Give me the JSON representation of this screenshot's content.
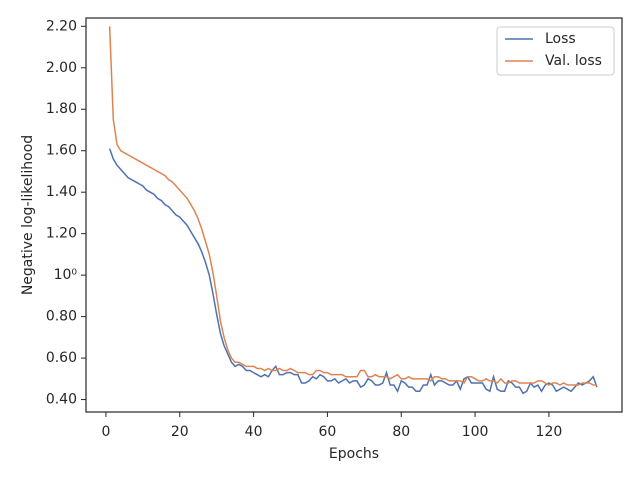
{
  "chart_data": {
    "type": "line",
    "xlabel": "Epochs",
    "ylabel": "Negative log-likelihood",
    "x": [
      1,
      2,
      3,
      4,
      5,
      6,
      7,
      8,
      9,
      10,
      11,
      12,
      13,
      14,
      15,
      16,
      17,
      18,
      19,
      20,
      21,
      22,
      23,
      24,
      25,
      26,
      27,
      28,
      29,
      30,
      31,
      32,
      33,
      34,
      35,
      36,
      37,
      38,
      39,
      40,
      41,
      42,
      43,
      44,
      45,
      46,
      47,
      48,
      49,
      50,
      51,
      52,
      53,
      54,
      55,
      56,
      57,
      58,
      59,
      60,
      61,
      62,
      63,
      64,
      65,
      66,
      67,
      68,
      69,
      70,
      71,
      72,
      73,
      74,
      75,
      76,
      77,
      78,
      79,
      80,
      81,
      82,
      83,
      84,
      85,
      86,
      87,
      88,
      89,
      90,
      91,
      92,
      93,
      94,
      95,
      96,
      97,
      98,
      99,
      100,
      101,
      102,
      103,
      104,
      105,
      106,
      107,
      108,
      109,
      110,
      111,
      112,
      113,
      114,
      115,
      116,
      117,
      118,
      119,
      120,
      121,
      122,
      123,
      124,
      125,
      126,
      127,
      128,
      129,
      130,
      131,
      132,
      133
    ],
    "series": [
      {
        "name": "Loss",
        "color": "#4c72b0",
        "values": [
          1.61,
          1.56,
          1.53,
          1.51,
          1.49,
          1.47,
          1.46,
          1.45,
          1.44,
          1.43,
          1.41,
          1.4,
          1.39,
          1.37,
          1.36,
          1.34,
          1.33,
          1.31,
          1.29,
          1.28,
          1.26,
          1.24,
          1.21,
          1.18,
          1.15,
          1.11,
          1.06,
          1.0,
          0.91,
          0.81,
          0.72,
          0.66,
          0.62,
          0.58,
          0.56,
          0.57,
          0.56,
          0.54,
          0.54,
          0.53,
          0.52,
          0.51,
          0.52,
          0.51,
          0.54,
          0.56,
          0.52,
          0.52,
          0.53,
          0.53,
          0.52,
          0.52,
          0.48,
          0.48,
          0.49,
          0.51,
          0.5,
          0.52,
          0.51,
          0.49,
          0.49,
          0.5,
          0.48,
          0.49,
          0.5,
          0.48,
          0.49,
          0.49,
          0.46,
          0.47,
          0.5,
          0.49,
          0.47,
          0.47,
          0.48,
          0.53,
          0.47,
          0.47,
          0.44,
          0.49,
          0.48,
          0.46,
          0.46,
          0.44,
          0.44,
          0.47,
          0.47,
          0.52,
          0.47,
          0.49,
          0.49,
          0.48,
          0.47,
          0.47,
          0.49,
          0.45,
          0.5,
          0.51,
          0.48,
          0.48,
          0.48,
          0.48,
          0.45,
          0.44,
          0.51,
          0.45,
          0.44,
          0.44,
          0.49,
          0.48,
          0.46,
          0.46,
          0.43,
          0.44,
          0.48,
          0.46,
          0.47,
          0.44,
          0.47,
          0.48,
          0.47,
          0.44,
          0.45,
          0.46,
          0.45,
          0.44,
          0.46,
          0.48,
          0.47,
          0.48,
          0.49,
          0.51,
          0.46
        ]
      },
      {
        "name": "Val. loss",
        "color": "#dd8452",
        "values": [
          2.2,
          1.75,
          1.63,
          1.6,
          1.59,
          1.58,
          1.57,
          1.56,
          1.55,
          1.54,
          1.53,
          1.52,
          1.51,
          1.5,
          1.49,
          1.48,
          1.46,
          1.45,
          1.43,
          1.41,
          1.39,
          1.37,
          1.34,
          1.31,
          1.27,
          1.22,
          1.16,
          1.1,
          1.01,
          0.9,
          0.78,
          0.7,
          0.64,
          0.6,
          0.58,
          0.58,
          0.57,
          0.56,
          0.56,
          0.56,
          0.55,
          0.55,
          0.54,
          0.55,
          0.54,
          0.54,
          0.55,
          0.54,
          0.54,
          0.55,
          0.54,
          0.53,
          0.53,
          0.53,
          0.52,
          0.52,
          0.54,
          0.54,
          0.53,
          0.53,
          0.52,
          0.52,
          0.52,
          0.52,
          0.51,
          0.51,
          0.51,
          0.51,
          0.54,
          0.54,
          0.51,
          0.51,
          0.52,
          0.51,
          0.51,
          0.51,
          0.5,
          0.51,
          0.52,
          0.5,
          0.5,
          0.51,
          0.5,
          0.5,
          0.5,
          0.5,
          0.5,
          0.49,
          0.51,
          0.51,
          0.5,
          0.5,
          0.49,
          0.49,
          0.49,
          0.49,
          0.48,
          0.51,
          0.51,
          0.5,
          0.49,
          0.49,
          0.5,
          0.49,
          0.49,
          0.48,
          0.5,
          0.48,
          0.48,
          0.49,
          0.49,
          0.48,
          0.48,
          0.48,
          0.48,
          0.48,
          0.49,
          0.49,
          0.48,
          0.47,
          0.48,
          0.48,
          0.47,
          0.48,
          0.47,
          0.47,
          0.47,
          0.47,
          0.48,
          0.48,
          0.48,
          0.47,
          0.47
        ]
      }
    ],
    "xlim": [
      -5.4,
      139.8
    ],
    "xticks": [
      0,
      20,
      40,
      60,
      80,
      100,
      120
    ],
    "ylim": [
      0.34,
      2.24
    ],
    "yticks": [
      {
        "value": 0.4,
        "label": "0.40"
      },
      {
        "value": 0.6,
        "label": "0.60"
      },
      {
        "value": 0.8,
        "label": "0.80"
      },
      {
        "value": 1.0,
        "label": "10⁰"
      },
      {
        "value": 1.2,
        "label": "1.20"
      },
      {
        "value": 1.4,
        "label": "1.40"
      },
      {
        "value": 1.6,
        "label": "1.60"
      },
      {
        "value": 1.8,
        "label": "1.80"
      },
      {
        "value": 2.0,
        "label": "2.00"
      },
      {
        "value": 2.2,
        "label": "2.20"
      }
    ],
    "legend": "upper right"
  }
}
